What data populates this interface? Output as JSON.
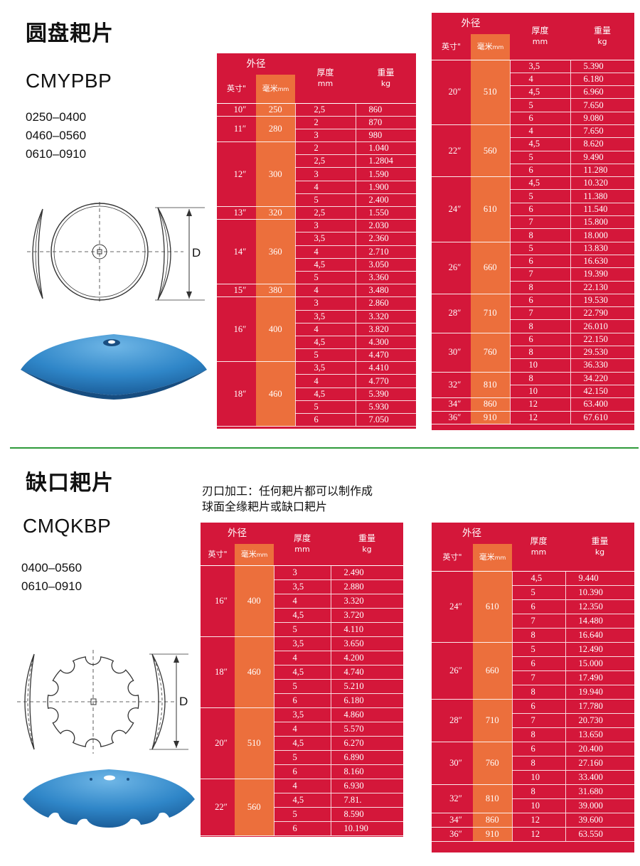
{
  "section1": {
    "title": "圆盘耙片",
    "model": "CMYPBP",
    "codes": [
      "0250–0400",
      "0460–0560",
      "0610–0910"
    ],
    "d_label": "D"
  },
  "section2": {
    "title": "缺口耙片",
    "model": "CMQKBP",
    "codes": [
      "0400–0560",
      "0610–0910"
    ],
    "note_lines": [
      "刃口加工：任何耙片都可以制作成",
      "球面全缘耙片或缺口耙片"
    ],
    "d_label": "D"
  },
  "headers": {
    "outer": "外径",
    "inch": "英寸\"",
    "mm_cn": "毫米",
    "mm_en": "mm",
    "thickness": "厚度",
    "thickness_unit": "mm",
    "weight": "重量",
    "weight_unit": "kg"
  },
  "colors": {
    "table_red": "#d4173a",
    "mm_orange": "#ec6f3c",
    "divider_green": "#2e9a3a",
    "disc_blue": "#2f86c8"
  },
  "tables": {
    "t1": [
      {
        "inch": "10″",
        "mm": "250",
        "rows": [
          [
            "2,5",
            "860"
          ]
        ]
      },
      {
        "inch": "11″",
        "mm": "280",
        "rows": [
          [
            "2",
            "870"
          ],
          [
            "3",
            "980"
          ]
        ]
      },
      {
        "inch": "12″",
        "mm": "300",
        "rows": [
          [
            "2",
            "1.040"
          ],
          [
            "2,5",
            "1.2804"
          ],
          [
            "3",
            "1.590"
          ],
          [
            "4",
            "1.900"
          ],
          [
            "5",
            "2.400"
          ]
        ]
      },
      {
        "inch": "13″",
        "mm": "320",
        "rows": [
          [
            "2,5",
            "1.550"
          ]
        ]
      },
      {
        "inch": "14″",
        "mm": "360",
        "rows": [
          [
            "3",
            "2.030"
          ],
          [
            "3,5",
            "2.360"
          ],
          [
            "4",
            "2.710"
          ],
          [
            "4,5",
            "3.050"
          ],
          [
            "5",
            "3.360"
          ]
        ]
      },
      {
        "inch": "15″",
        "mm": "380",
        "rows": [
          [
            "4",
            "3.480"
          ]
        ]
      },
      {
        "inch": "16″",
        "mm": "400",
        "rows": [
          [
            "3",
            "2.860"
          ],
          [
            "3,5",
            "3.320"
          ],
          [
            "4",
            "3.820"
          ],
          [
            "4,5",
            "4.300"
          ],
          [
            "5",
            "4.470"
          ]
        ]
      },
      {
        "inch": "18″",
        "mm": "460",
        "rows": [
          [
            "3,5",
            "4.410"
          ],
          [
            "4",
            "4.770"
          ],
          [
            "4,5",
            "5.390"
          ],
          [
            "5",
            "5.930"
          ],
          [
            "6",
            "7.050"
          ]
        ]
      }
    ],
    "t2": [
      {
        "inch": "20″",
        "mm": "510",
        "rows": [
          [
            "3,5",
            "5.390"
          ],
          [
            "4",
            "6.180"
          ],
          [
            "4,5",
            "6.960"
          ],
          [
            "5",
            "7.650"
          ],
          [
            "6",
            "9.080"
          ]
        ]
      },
      {
        "inch": "22″",
        "mm": "560",
        "rows": [
          [
            "4",
            "7.650"
          ],
          [
            "4,5",
            "8.620"
          ],
          [
            "5",
            "9.490"
          ],
          [
            "6",
            "11.280"
          ]
        ]
      },
      {
        "inch": "24″",
        "mm": "610",
        "rows": [
          [
            "4,5",
            "10.320"
          ],
          [
            "5",
            "11.380"
          ],
          [
            "6",
            "11.540"
          ],
          [
            "7",
            "15.800"
          ],
          [
            "8",
            "18.000"
          ]
        ]
      },
      {
        "inch": "26″",
        "mm": "660",
        "rows": [
          [
            "5",
            "13.830"
          ],
          [
            "6",
            "16.630"
          ],
          [
            "7",
            "19.390"
          ],
          [
            "8",
            "22.130"
          ]
        ]
      },
      {
        "inch": "28″",
        "mm": "710",
        "rows": [
          [
            "6",
            "19.530"
          ],
          [
            "7",
            "22.790"
          ],
          [
            "8",
            "26.010"
          ]
        ]
      },
      {
        "inch": "30″",
        "mm": "760",
        "rows": [
          [
            "6",
            "22.150"
          ],
          [
            "8",
            "29.530"
          ],
          [
            "10",
            "36.330"
          ]
        ]
      },
      {
        "inch": "32″",
        "mm": "810",
        "rows": [
          [
            "8",
            "34.220"
          ],
          [
            "10",
            "42.150"
          ]
        ]
      },
      {
        "inch": "34″",
        "mm": "860",
        "rows": [
          [
            "12",
            "63.400"
          ]
        ]
      },
      {
        "inch": "36″",
        "mm": "910",
        "rows": [
          [
            "12",
            "67.610"
          ]
        ]
      }
    ],
    "t3": [
      {
        "inch": "16″",
        "mm": "400",
        "rows": [
          [
            "3",
            "2.490"
          ],
          [
            "3,5",
            "2.880"
          ],
          [
            "4",
            "3.320"
          ],
          [
            "4,5",
            "3.720"
          ],
          [
            "5",
            "4.110"
          ]
        ]
      },
      {
        "inch": "18″",
        "mm": "460",
        "rows": [
          [
            "3,5",
            "3.650"
          ],
          [
            "4",
            "4.200"
          ],
          [
            "4,5",
            "4.740"
          ],
          [
            "5",
            "5.210"
          ],
          [
            "6",
            "6.180"
          ]
        ]
      },
      {
        "inch": "20″",
        "mm": "510",
        "rows": [
          [
            "3,5",
            "4.860"
          ],
          [
            "4",
            "5.570"
          ],
          [
            "4,5",
            "6.270"
          ],
          [
            "5",
            "6.890"
          ],
          [
            "6",
            "8.160"
          ]
        ]
      },
      {
        "inch": "22″",
        "mm": "560",
        "rows": [
          [
            "4",
            "6.930"
          ],
          [
            "4,5",
            "7.81."
          ],
          [
            "5",
            "8.590"
          ],
          [
            "6",
            "10.190"
          ]
        ]
      }
    ],
    "t4": [
      {
        "inch": "24″",
        "mm": "610",
        "rows": [
          [
            "4,5",
            "9.440"
          ],
          [
            "5",
            "10.390"
          ],
          [
            "6",
            "12.350"
          ],
          [
            "7",
            "14.480"
          ],
          [
            "8",
            "16.640"
          ]
        ]
      },
      {
        "inch": "26″",
        "mm": "660",
        "rows": [
          [
            "5",
            "12.490"
          ],
          [
            "6",
            "15.000"
          ],
          [
            "7",
            "17.490"
          ],
          [
            "8",
            "19.940"
          ]
        ]
      },
      {
        "inch": "28″",
        "mm": "710",
        "rows": [
          [
            "6",
            "17.780"
          ],
          [
            "7",
            "20.730"
          ],
          [
            "8",
            "13.650"
          ]
        ]
      },
      {
        "inch": "30″",
        "mm": "760",
        "rows": [
          [
            "6",
            "20.400"
          ],
          [
            "8",
            "27.160"
          ],
          [
            "10",
            "33.400"
          ]
        ]
      },
      {
        "inch": "32″",
        "mm": "810",
        "rows": [
          [
            "8",
            "31.680"
          ],
          [
            "10",
            "39.000"
          ]
        ]
      },
      {
        "inch": "34″",
        "mm": "860",
        "rows": [
          [
            "12",
            "39.600"
          ]
        ]
      },
      {
        "inch": "36″",
        "mm": "910",
        "rows": [
          [
            "12",
            "63.550"
          ]
        ]
      }
    ]
  }
}
